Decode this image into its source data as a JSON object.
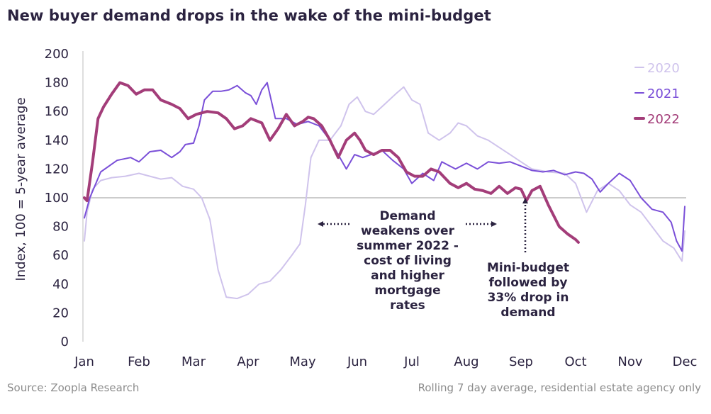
{
  "title": "New buyer demand drops in the wake of the mini-budget",
  "footer": {
    "source": "Source: Zoopla Research",
    "note": "Rolling 7 day average, residential estate agency only"
  },
  "chart_data": {
    "type": "line",
    "title": "New buyer demand drops in the wake of the mini-budget",
    "xlabel": "",
    "ylabel": "Index, 100 = 5-year average",
    "ylim": [
      0,
      200
    ],
    "yticks": [
      0,
      20,
      40,
      60,
      80,
      100,
      120,
      140,
      160,
      180,
      200
    ],
    "xlim": [
      0,
      11.05
    ],
    "categories": [
      "Jan",
      "Feb",
      "Mar",
      "Apr",
      "May",
      "Jun",
      "Jul",
      "Aug",
      "Sep",
      "Oct",
      "Nov",
      "Dec"
    ],
    "reference_line": 100,
    "legend_position": "top-right",
    "series": [
      {
        "name": "2020",
        "color": "#cfc3ec",
        "x": [
          0,
          0.05,
          0.15,
          0.3,
          0.5,
          0.75,
          1.0,
          1.2,
          1.4,
          1.6,
          1.8,
          2.0,
          2.15,
          2.3,
          2.45,
          2.6,
          2.8,
          3.0,
          3.2,
          3.4,
          3.6,
          3.8,
          3.95,
          4.05,
          4.15,
          4.3,
          4.5,
          4.7,
          4.85,
          5.0,
          5.15,
          5.3,
          5.5,
          5.7,
          5.85,
          6.0,
          6.15,
          6.3,
          6.5,
          6.7,
          6.85,
          7.0,
          7.2,
          7.4,
          7.6,
          7.8,
          8.0,
          8.2,
          8.5,
          8.8,
          9.0,
          9.2,
          9.4,
          9.6,
          9.8,
          10.0,
          10.2,
          10.4,
          10.6,
          10.8,
          10.95,
          11.0
        ],
        "values": [
          70,
          90,
          106,
          112,
          114,
          115,
          117,
          115,
          113,
          114,
          108,
          106,
          100,
          85,
          50,
          31,
          30,
          33,
          40,
          42,
          50,
          60,
          68,
          95,
          128,
          140,
          140,
          150,
          165,
          170,
          160,
          158,
          165,
          172,
          177,
          168,
          165,
          145,
          140,
          145,
          152,
          150,
          143,
          140,
          135,
          130,
          125,
          120,
          118,
          117,
          110,
          90,
          105,
          110,
          105,
          95,
          90,
          80,
          70,
          65,
          56,
          77
        ]
      },
      {
        "name": "2021",
        "color": "#7a4fd8",
        "x": [
          0,
          0.1,
          0.3,
          0.6,
          0.85,
          1.0,
          1.2,
          1.4,
          1.6,
          1.75,
          1.85,
          2.0,
          2.1,
          2.2,
          2.35,
          2.5,
          2.65,
          2.8,
          2.95,
          3.0,
          3.05,
          3.15,
          3.25,
          3.35,
          3.5,
          3.7,
          3.9,
          4.1,
          4.3,
          4.5,
          4.65,
          4.8,
          4.95,
          5.1,
          5.25,
          5.45,
          5.65,
          5.85,
          6.0,
          6.2,
          6.4,
          6.55,
          6.8,
          7.0,
          7.2,
          7.4,
          7.6,
          7.8,
          8.0,
          8.2,
          8.4,
          8.6,
          8.8,
          9.0,
          9.15,
          9.3,
          9.45,
          9.6,
          9.8,
          10.0,
          10.2,
          10.4,
          10.6,
          10.75,
          10.85,
          10.95,
          11.0
        ],
        "values": [
          86,
          100,
          118,
          126,
          128,
          125,
          132,
          133,
          128,
          132,
          137,
          138,
          150,
          168,
          174,
          174,
          175,
          178,
          173,
          172,
          171,
          165,
          175,
          180,
          155,
          155,
          151,
          153,
          150,
          140,
          130,
          120,
          130,
          128,
          130,
          133,
          126,
          120,
          110,
          117,
          112,
          125,
          120,
          124,
          120,
          125,
          124,
          125,
          122,
          119,
          118,
          119,
          116,
          118,
          117,
          113,
          104,
          110,
          117,
          112,
          100,
          92,
          90,
          83,
          70,
          63,
          94
        ]
      },
      {
        "name": "2022",
        "color": "#a33d79",
        "x": [
          0,
          0.05,
          0.15,
          0.25,
          0.35,
          0.5,
          0.65,
          0.8,
          0.95,
          1.1,
          1.25,
          1.4,
          1.6,
          1.75,
          1.9,
          2.05,
          2.25,
          2.45,
          2.6,
          2.75,
          2.9,
          3.05,
          3.25,
          3.4,
          3.55,
          3.7,
          3.85,
          4.0,
          4.1,
          4.2,
          4.35,
          4.5,
          4.65,
          4.8,
          4.95,
          5.05,
          5.15,
          5.3,
          5.45,
          5.6,
          5.75,
          5.9,
          6.05,
          6.2,
          6.35,
          6.5,
          6.7,
          6.85,
          7.0,
          7.15,
          7.3,
          7.45,
          7.6,
          7.75,
          7.9,
          8.0,
          8.1,
          8.2,
          8.35,
          8.5,
          8.7,
          8.85,
          9.0,
          9.05
        ],
        "values": [
          100,
          98,
          125,
          155,
          163,
          172,
          180,
          178,
          172,
          175,
          175,
          168,
          165,
          162,
          155,
          158,
          160,
          159,
          155,
          148,
          150,
          155,
          152,
          140,
          148,
          158,
          150,
          153,
          156,
          155,
          150,
          140,
          128,
          140,
          145,
          140,
          133,
          130,
          133,
          133,
          128,
          118,
          115,
          115,
          120,
          118,
          110,
          107,
          110,
          106,
          105,
          103,
          108,
          103,
          107,
          106,
          98,
          105,
          108,
          95,
          80,
          75,
          71,
          69
        ]
      }
    ],
    "annotations": [
      {
        "lines": [
          "Demand",
          "weakens over",
          "summer 2022 -",
          "cost of living",
          "and higher",
          "mortgage",
          "rates"
        ],
        "arrows": "left-right dotted"
      },
      {
        "lines": [
          "Mini-budget",
          "followed by",
          "33% drop in",
          "demand"
        ],
        "arrows": "up dotted"
      }
    ]
  }
}
